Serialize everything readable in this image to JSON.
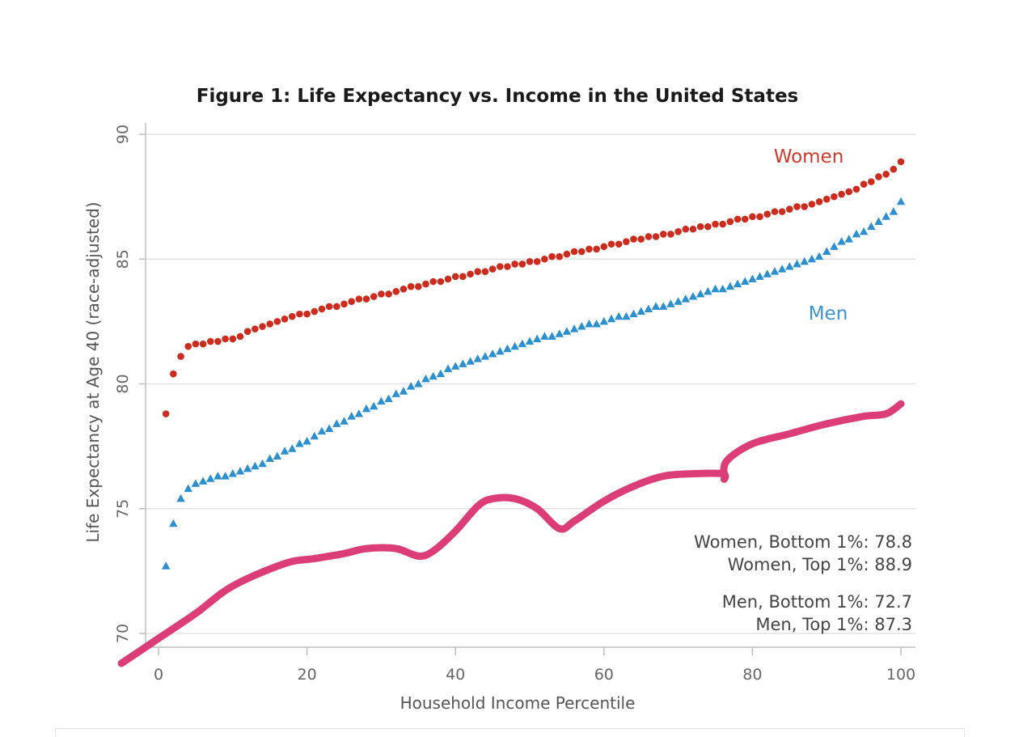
{
  "chart_data": {
    "type": "scatter",
    "title": "Figure 1: Life Expectancy vs. Income in the United States",
    "xlabel": "Household Income Percentile",
    "ylabel": "Life Expectancy at Age 40 (race-adjusted)",
    "xlim": [
      0,
      100
    ],
    "ylim": [
      70,
      90
    ],
    "xticks": [
      0,
      20,
      40,
      60,
      80,
      100
    ],
    "yticks": [
      70,
      75,
      80,
      85,
      90
    ],
    "grid": "horizontal",
    "x": [
      1,
      2,
      3,
      4,
      5,
      6,
      7,
      8,
      9,
      10,
      11,
      12,
      13,
      14,
      15,
      16,
      17,
      18,
      19,
      20,
      21,
      22,
      23,
      24,
      25,
      26,
      27,
      28,
      29,
      30,
      31,
      32,
      33,
      34,
      35,
      36,
      37,
      38,
      39,
      40,
      41,
      42,
      43,
      44,
      45,
      46,
      47,
      48,
      49,
      50,
      51,
      52,
      53,
      54,
      55,
      56,
      57,
      58,
      59,
      60,
      61,
      62,
      63,
      64,
      65,
      66,
      67,
      68,
      69,
      70,
      71,
      72,
      73,
      74,
      75,
      76,
      77,
      78,
      79,
      80,
      81,
      82,
      83,
      84,
      85,
      86,
      87,
      88,
      89,
      90,
      91,
      92,
      93,
      94,
      95,
      96,
      97,
      98,
      99,
      100
    ],
    "series": [
      {
        "name": "Women",
        "color": "#cc2b1d",
        "marker": "circle",
        "values": [
          78.8,
          80.4,
          81.1,
          81.5,
          81.6,
          81.6,
          81.7,
          81.7,
          81.8,
          81.8,
          81.9,
          82.1,
          82.2,
          82.3,
          82.4,
          82.5,
          82.6,
          82.7,
          82.8,
          82.8,
          82.9,
          83.0,
          83.1,
          83.1,
          83.2,
          83.3,
          83.4,
          83.4,
          83.5,
          83.6,
          83.6,
          83.7,
          83.8,
          83.9,
          83.9,
          84.0,
          84.1,
          84.1,
          84.2,
          84.3,
          84.3,
          84.4,
          84.5,
          84.5,
          84.6,
          84.7,
          84.7,
          84.8,
          84.8,
          84.9,
          84.9,
          85.0,
          85.1,
          85.1,
          85.2,
          85.3,
          85.3,
          85.4,
          85.4,
          85.5,
          85.6,
          85.6,
          85.7,
          85.8,
          85.8,
          85.9,
          85.9,
          86.0,
          86.0,
          86.1,
          86.2,
          86.2,
          86.3,
          86.3,
          86.4,
          86.4,
          86.5,
          86.6,
          86.6,
          86.7,
          86.7,
          86.8,
          86.9,
          86.9,
          87.0,
          87.1,
          87.1,
          87.2,
          87.3,
          87.4,
          87.5,
          87.6,
          87.7,
          87.8,
          88.0,
          88.1,
          88.3,
          88.4,
          88.6,
          88.9
        ]
      },
      {
        "name": "Men",
        "color": "#2b8fd0",
        "marker": "triangle",
        "values": [
          72.7,
          74.4,
          75.4,
          75.8,
          76.0,
          76.1,
          76.2,
          76.3,
          76.3,
          76.4,
          76.5,
          76.6,
          76.7,
          76.8,
          77.0,
          77.1,
          77.3,
          77.4,
          77.6,
          77.7,
          77.9,
          78.1,
          78.2,
          78.4,
          78.5,
          78.7,
          78.8,
          79.0,
          79.1,
          79.3,
          79.4,
          79.6,
          79.7,
          79.9,
          80.0,
          80.2,
          80.3,
          80.4,
          80.6,
          80.7,
          80.8,
          80.9,
          81.0,
          81.1,
          81.2,
          81.3,
          81.4,
          81.5,
          81.6,
          81.7,
          81.8,
          81.9,
          81.9,
          82.0,
          82.1,
          82.2,
          82.3,
          82.4,
          82.4,
          82.5,
          82.6,
          82.7,
          82.7,
          82.8,
          82.9,
          83.0,
          83.1,
          83.1,
          83.2,
          83.3,
          83.4,
          83.5,
          83.6,
          83.7,
          83.8,
          83.8,
          83.9,
          84.0,
          84.1,
          84.2,
          84.3,
          84.4,
          84.5,
          84.6,
          84.7,
          84.8,
          84.9,
          85.0,
          85.1,
          85.3,
          85.5,
          85.7,
          85.8,
          86.0,
          86.1,
          86.3,
          86.5,
          86.7,
          86.9,
          87.3
        ]
      }
    ],
    "series_label_colors": {
      "women": "#d03a2e",
      "men": "#3d94d4"
    },
    "annotations": [
      "Women, Bottom 1%: 78.8",
      "Women, Top 1%: 88.9",
      "Men, Bottom 1%: 72.7",
      "Men, Top 1%: 87.3"
    ],
    "overlay_stroke": {
      "color": "#dc3c77",
      "points": [
        [
          -5,
          68.8
        ],
        [
          0,
          69.8
        ],
        [
          5,
          70.8
        ],
        [
          10,
          71.9
        ],
        [
          17,
          72.8
        ],
        [
          21,
          73.0
        ],
        [
          25,
          73.2
        ],
        [
          28,
          73.4
        ],
        [
          32,
          73.4
        ],
        [
          35,
          73.1
        ],
        [
          37,
          73.3
        ],
        [
          40,
          74.1
        ],
        [
          43,
          75.1
        ],
        [
          45,
          75.4
        ],
        [
          48,
          75.4
        ],
        [
          51,
          75.0
        ],
        [
          54,
          74.2
        ],
        [
          56,
          74.5
        ],
        [
          60,
          75.3
        ],
        [
          64,
          75.9
        ],
        [
          68,
          76.3
        ],
        [
          72,
          76.4
        ],
        [
          76,
          76.4
        ],
        [
          76.2,
          76.2
        ],
        [
          76.5,
          76.9
        ],
        [
          80,
          77.6
        ],
        [
          85,
          78.0
        ],
        [
          90,
          78.4
        ],
        [
          95,
          78.7
        ],
        [
          98,
          78.8
        ],
        [
          100,
          79.2
        ]
      ]
    }
  }
}
